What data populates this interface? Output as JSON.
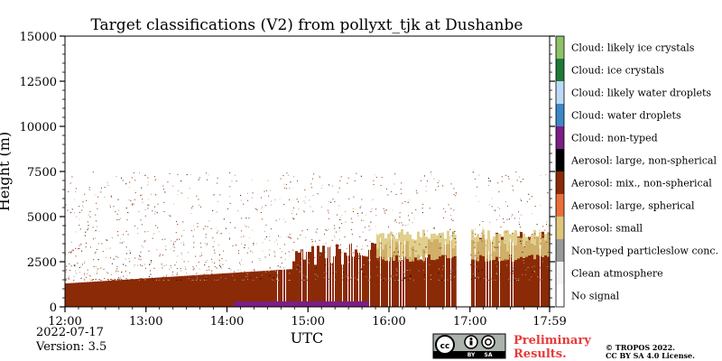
{
  "chart_data": {
    "type": "heatmap",
    "title": "Target classifications (V2) from pollyxt_tjk at Dushanbe",
    "xlabel": "UTC",
    "ylabel": "Height (m)",
    "x_range": [
      "12:00",
      "17:59"
    ],
    "xlim_hours": [
      12.0,
      17.9833
    ],
    "ylim": [
      0,
      15000
    ],
    "x_ticks": [
      {
        "label": "12:00",
        "value": 12.0
      },
      {
        "label": "13:00",
        "value": 13.0
      },
      {
        "label": "14:00",
        "value": 14.0
      },
      {
        "label": "15:00",
        "value": 15.0
      },
      {
        "label": "16:00",
        "value": 16.0
      },
      {
        "label": "17:00",
        "value": 17.0
      },
      {
        "label": "17:59",
        "value": 17.9833
      }
    ],
    "y_ticks": [
      {
        "label": "0",
        "value": 0
      },
      {
        "label": "2500",
        "value": 2500
      },
      {
        "label": "5000",
        "value": 5000
      },
      {
        "label": "7500",
        "value": 7500
      },
      {
        "label": "10000",
        "value": 10000
      },
      {
        "label": "12500",
        "value": 12500
      },
      {
        "label": "15000",
        "value": 15000
      }
    ],
    "legend_placement": "right colorbar",
    "classes": [
      {
        "label": "Cloud: likely ice crystals",
        "color": "#8fc16b"
      },
      {
        "label": "Cloud: ice crystals",
        "color": "#1f7a3a"
      },
      {
        "label": "Cloud: likely water droplets",
        "color": "#bcdaf5"
      },
      {
        "label": "Cloud: water droplets",
        "color": "#3f86c8"
      },
      {
        "label": "Cloud: non-typed",
        "color": "#7a1f86"
      },
      {
        "label": "Aerosol: large, non-spherical",
        "color": "#000000"
      },
      {
        "label": "Aerosol: mix., non-spherical",
        "color": "#8b2a06"
      },
      {
        "label": "Aerosol: large, spherical",
        "color": "#e9703a"
      },
      {
        "label": "Aerosol: small",
        "color": "#dcc77a"
      },
      {
        "label": "Non-typed particleslow conc.",
        "color": "#9a9a9a"
      },
      {
        "label": "Clean atmosphere",
        "color": "#f4f4f4"
      },
      {
        "label": "No signal",
        "color": "#ffffff"
      }
    ],
    "layers": [
      {
        "class": "Aerosol: mix., non-spherical",
        "from_time": "12:00",
        "to_time": "17:59",
        "bottom_m": 0,
        "top_m_start": 1300,
        "top_m_end": 3000
      },
      {
        "class": "Aerosol: small",
        "from_time": "15:50",
        "to_time": "17:59",
        "bottom_m": 2500,
        "top_m": 4300
      },
      {
        "class": "Cloud: non-typed",
        "from_time": "14:05",
        "to_time": "15:45",
        "bottom_m": 0,
        "top_m": 300
      },
      {
        "class": "No signal",
        "from_time": "16:50",
        "to_time": "17:00",
        "bottom_m": 0,
        "top_m": 15000
      }
    ]
  },
  "footer": {
    "date": "2022-07-17",
    "version": "Version: 3.5",
    "preliminary_line1": "Preliminary",
    "preliminary_line2": "Results.",
    "copyright_line1": "© TROPOS 2022.",
    "copyright_line2": "CC BY SA 4.0 License.",
    "license_badge": {
      "by": "BY",
      "sa": "SA"
    }
  }
}
